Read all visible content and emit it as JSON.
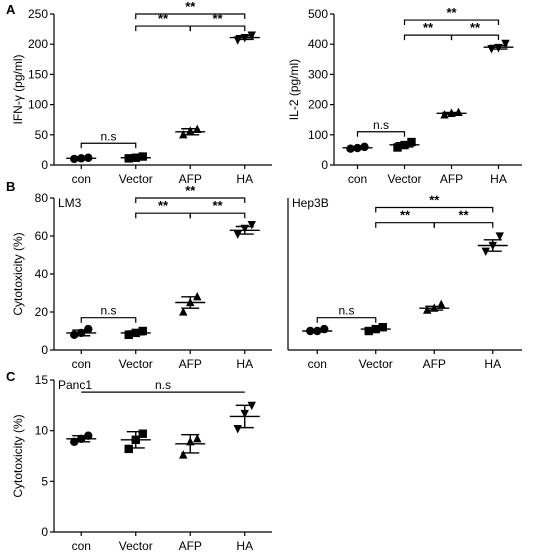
{
  "figure": {
    "panel_letters": [
      "A",
      "B",
      "C"
    ]
  },
  "chart_data": [
    {
      "id": "ifng",
      "type": "scatter",
      "panel_letter": "A",
      "ylabel": "IFN-γ (pg/ml)",
      "xlabel": "",
      "categories": [
        "con",
        "Vector",
        "AFP",
        "HA"
      ],
      "ylim": [
        0,
        250
      ],
      "yticks": [
        0,
        50,
        100,
        150,
        200,
        250
      ],
      "markers": [
        "circle",
        "square",
        "triangle-up",
        "triangle-down"
      ],
      "points": [
        [
          10,
          11,
          12
        ],
        [
          11,
          12,
          14
        ],
        [
          50,
          56,
          59
        ],
        [
          207,
          211,
          215
        ]
      ],
      "mean": [
        11,
        12,
        55,
        211
      ],
      "sem": [
        1,
        1.5,
        5,
        3
      ],
      "brackets": [
        {
          "from": 0,
          "to": 1,
          "y": 36,
          "label": "n.s"
        },
        {
          "from": 1,
          "to": 2,
          "y": 230,
          "label": "**"
        },
        {
          "from": 2,
          "to": 3,
          "y": 230,
          "label": "**"
        },
        {
          "from": 1,
          "to": 3,
          "y": 250,
          "label": "**"
        }
      ]
    },
    {
      "id": "il2",
      "type": "scatter",
      "ylabel": "IL-2 (pg/ml)",
      "xlabel": "",
      "categories": [
        "con",
        "Vector",
        "AFP",
        "HA"
      ],
      "ylim": [
        0,
        500
      ],
      "yticks": [
        0,
        100,
        200,
        300,
        400,
        500
      ],
      "markers": [
        "circle",
        "square",
        "triangle-up",
        "triangle-down"
      ],
      "points": [
        [
          54,
          56,
          60
        ],
        [
          58,
          66,
          76
        ],
        [
          166,
          171,
          174
        ],
        [
          385,
          389,
          403
        ]
      ],
      "mean": [
        57,
        67,
        171,
        390
      ],
      "sem": [
        4,
        7,
        3,
        6
      ],
      "brackets": [
        {
          "from": 0,
          "to": 1,
          "y": 110,
          "label": "n.s"
        },
        {
          "from": 2,
          "to": 3,
          "y": 430,
          "label": "**"
        },
        {
          "from": 1,
          "to": 2,
          "y": 430,
          "label": "**"
        },
        {
          "from": 1,
          "to": 3,
          "y": 480,
          "label": "**"
        }
      ]
    },
    {
      "id": "lm3",
      "type": "scatter",
      "panel_letter": "B",
      "inset_title": "LM3",
      "ylabel": "Cytotoxicity (%)",
      "xlabel": "",
      "categories": [
        "con",
        "Vector",
        "AFP",
        "HA"
      ],
      "ylim": [
        0,
        80
      ],
      "yticks": [
        0,
        20,
        40,
        60,
        80
      ],
      "markers": [
        "circle",
        "square",
        "triangle-up",
        "triangle-down"
      ],
      "points": [
        [
          8,
          9,
          11
        ],
        [
          8,
          9,
          10
        ],
        [
          20,
          25,
          28
        ],
        [
          61,
          64,
          66
        ]
      ],
      "mean": [
        9,
        9,
        25,
        63
      ],
      "sem": [
        1.5,
        1,
        3,
        2
      ],
      "brackets": [
        {
          "from": 0,
          "to": 1,
          "y": 17,
          "label": "n.s"
        },
        {
          "from": 1,
          "to": 2,
          "y": 72,
          "label": "**"
        },
        {
          "from": 2,
          "to": 3,
          "y": 72,
          "label": "**"
        },
        {
          "from": 1,
          "to": 3,
          "y": 80,
          "label": "**"
        }
      ]
    },
    {
      "id": "hep3b",
      "type": "scatter",
      "inset_title": "Hep3B",
      "ylabel": "",
      "xlabel": "",
      "categories": [
        "con",
        "Vector",
        "AFP",
        "HA"
      ],
      "ylim": [
        0,
        80
      ],
      "yticks": [],
      "markers": [
        "circle",
        "square",
        "triangle-up",
        "triangle-down"
      ],
      "points": [
        [
          10,
          10,
          11
        ],
        [
          10,
          11,
          12
        ],
        [
          21,
          22,
          24
        ],
        [
          52,
          55,
          60
        ]
      ],
      "mean": [
        10,
        11,
        22,
        55
      ],
      "sem": [
        0.5,
        0.7,
        1,
        3
      ],
      "brackets": [
        {
          "from": 0,
          "to": 1,
          "y": 17,
          "label": "n.s"
        },
        {
          "from": 1,
          "to": 2,
          "y": 67,
          "label": "**"
        },
        {
          "from": 2,
          "to": 3,
          "y": 67,
          "label": "**"
        },
        {
          "from": 1,
          "to": 3,
          "y": 75,
          "label": "**"
        }
      ]
    },
    {
      "id": "panc1",
      "type": "scatter",
      "panel_letter": "C",
      "inset_title": "Panc1",
      "ylabel": "Cytotoxicity (%)",
      "xlabel": "",
      "categories": [
        "con",
        "Vector",
        "AFP",
        "HA"
      ],
      "ylim": [
        0,
        15
      ],
      "yticks": [
        0,
        5,
        10,
        15
      ],
      "markers": [
        "circle",
        "square",
        "triangle-up",
        "triangle-down"
      ],
      "points": [
        [
          8.9,
          9.2,
          9.5
        ],
        [
          8.2,
          9.1,
          9.7
        ],
        [
          7.6,
          8.9,
          9.2
        ],
        [
          10.2,
          11.7,
          12.5
        ]
      ],
      "mean": [
        9.2,
        9.1,
        8.7,
        11.4
      ],
      "sem": [
        0.3,
        0.8,
        0.9,
        1.1
      ],
      "brackets": [
        {
          "from": 0,
          "to": 3,
          "y": 13.8,
          "label": "n.s",
          "flat": true
        }
      ]
    }
  ]
}
